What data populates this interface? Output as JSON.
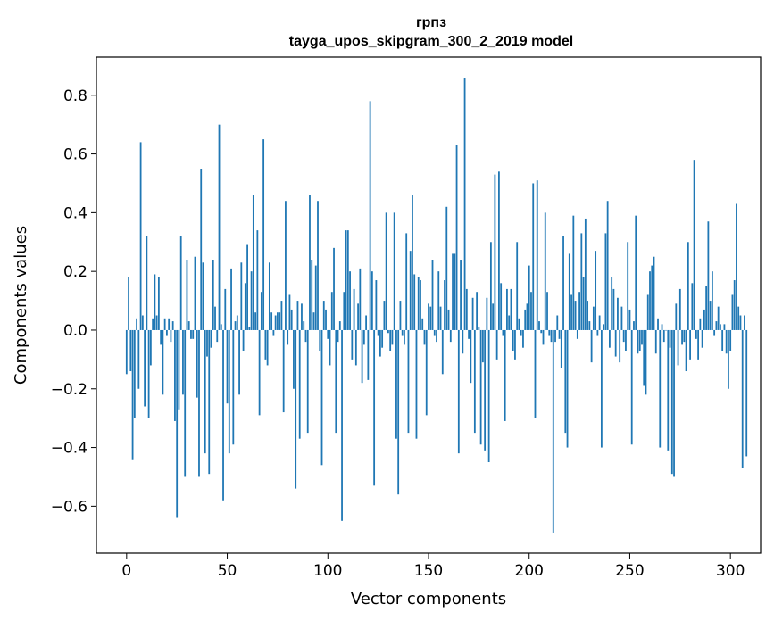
{
  "chart_data": {
    "type": "bar",
    "title": "грпз",
    "subtitle": "tayga_upos_skipgram_300_2_2019 model",
    "xlabel": "Vector components",
    "ylabel": "Components values",
    "xlim": [
      -15,
      315
    ],
    "ylim": [
      -0.76,
      0.93
    ],
    "xticks": [
      0,
      50,
      100,
      150,
      200,
      250,
      300
    ],
    "xtick_labels": [
      "0",
      "50",
      "100",
      "150",
      "200",
      "250",
      "300"
    ],
    "yticks": [
      -0.6,
      -0.4,
      -0.2,
      0.0,
      0.2,
      0.4,
      0.6,
      0.8
    ],
    "ytick_labels": [
      "−0.6",
      "−0.4",
      "−0.2",
      "0.0",
      "0.2",
      "0.4",
      "0.6",
      "0.8"
    ],
    "bar_color": "#1f77b4",
    "values": [
      -0.15,
      0.18,
      -0.14,
      -0.44,
      -0.3,
      0.04,
      -0.2,
      0.64,
      0.05,
      -0.26,
      0.32,
      -0.3,
      -0.12,
      0.04,
      0.19,
      0.05,
      0.18,
      -0.05,
      -0.22,
      0.04,
      -0.02,
      0.04,
      -0.04,
      0.03,
      -0.31,
      -0.64,
      -0.27,
      0.32,
      -0.22,
      -0.5,
      0.24,
      0.03,
      -0.03,
      -0.03,
      0.25,
      -0.23,
      -0.5,
      0.55,
      0.23,
      -0.42,
      -0.09,
      -0.49,
      -0.06,
      0.24,
      0.08,
      -0.04,
      0.7,
      0.02,
      -0.58,
      0.14,
      -0.25,
      -0.42,
      0.21,
      -0.39,
      0.03,
      0.05,
      -0.22,
      0.23,
      -0.07,
      0.16,
      0.29,
      0.01,
      0.2,
      0.46,
      0.06,
      0.34,
      -0.29,
      0.13,
      0.65,
      -0.1,
      -0.12,
      0.23,
      0.06,
      -0.02,
      0.05,
      0.06,
      0.06,
      0.1,
      -0.28,
      0.44,
      -0.05,
      0.12,
      0.07,
      -0.2,
      -0.54,
      0.1,
      -0.37,
      0.09,
      0.03,
      -0.04,
      -0.35,
      0.46,
      0.24,
      0.06,
      0.22,
      0.44,
      -0.07,
      -0.46,
      0.1,
      0.07,
      -0.03,
      -0.12,
      0.13,
      0.28,
      -0.35,
      -0.04,
      0.03,
      -0.65,
      0.13,
      0.34,
      0.34,
      0.2,
      -0.1,
      0.14,
      -0.12,
      0.09,
      0.21,
      -0.18,
      -0.05,
      0.05,
      -0.17,
      0.78,
      0.2,
      -0.53,
      0.17,
      -0.02,
      -0.09,
      -0.06,
      0.1,
      0.4,
      -0.01,
      -0.07,
      -0.05,
      0.4,
      -0.37,
      -0.56,
      0.1,
      -0.02,
      -0.05,
      0.33,
      -0.35,
      0.27,
      0.46,
      0.19,
      -0.37,
      0.18,
      0.17,
      0.04,
      -0.05,
      -0.29,
      0.09,
      0.08,
      0.24,
      -0.02,
      -0.04,
      0.2,
      0.08,
      -0.15,
      0.17,
      0.42,
      0.07,
      -0.04,
      0.26,
      0.26,
      0.63,
      -0.42,
      0.24,
      -0.08,
      0.86,
      0.14,
      -0.03,
      -0.18,
      0.11,
      -0.35,
      0.13,
      0.01,
      -0.39,
      -0.11,
      -0.41,
      0.11,
      -0.45,
      0.3,
      0.09,
      0.53,
      -0.1,
      0.54,
      0.16,
      -0.02,
      -0.31,
      0.14,
      0.05,
      0.14,
      -0.07,
      -0.1,
      0.3,
      0.04,
      -0.02,
      -0.06,
      0.07,
      0.09,
      0.22,
      0.13,
      0.5,
      -0.3,
      0.51,
      0.03,
      -0.01,
      -0.05,
      0.4,
      0.13,
      -0.02,
      -0.04,
      -0.69,
      -0.04,
      0.05,
      -0.03,
      -0.13,
      0.32,
      -0.35,
      -0.4,
      0.26,
      0.12,
      0.39,
      0.1,
      -0.03,
      0.13,
      0.33,
      0.18,
      0.38,
      0.1,
      0.03,
      -0.11,
      0.08,
      0.27,
      -0.02,
      0.05,
      -0.4,
      0.02,
      0.33,
      0.44,
      -0.06,
      0.18,
      0.14,
      -0.09,
      0.11,
      -0.11,
      0.08,
      -0.04,
      -0.07,
      0.3,
      0.07,
      -0.39,
      0.03,
      0.39,
      -0.08,
      -0.07,
      -0.05,
      -0.19,
      -0.22,
      0.12,
      0.2,
      0.22,
      0.25,
      -0.08,
      0.04,
      -0.4,
      0.02,
      -0.04,
      0.0,
      -0.41,
      -0.06,
      -0.49,
      -0.5,
      0.09,
      -0.12,
      0.14,
      -0.05,
      -0.04,
      -0.14,
      0.3,
      -0.1,
      0.16,
      0.58,
      -0.03,
      -0.1,
      0.04,
      -0.06,
      0.07,
      0.15,
      0.37,
      0.1,
      0.2,
      -0.02,
      0.03,
      0.08,
      0.02,
      -0.07,
      0.02,
      -0.08,
      -0.2,
      -0.07,
      0.12,
      0.17,
      0.43,
      0.08,
      0.05,
      -0.47,
      0.05,
      -0.43
    ]
  }
}
